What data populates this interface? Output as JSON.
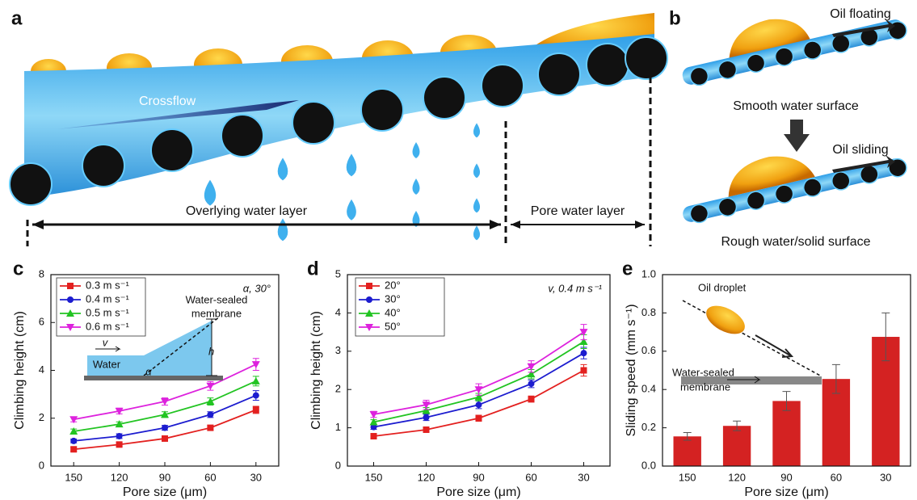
{
  "panels": {
    "a": {
      "label": "a",
      "crossflow": "Crossflow",
      "overlying": "Overlying water layer",
      "pore": "Pore water layer"
    },
    "b": {
      "label": "b",
      "top_arrow": "Oil floating",
      "top_caption": "Smooth water surface",
      "bottom_arrow": "Oil sliding",
      "bottom_caption": "Rough water/solid surface"
    }
  },
  "chart_data": [
    {
      "type": "line",
      "panel": "c",
      "x_label": "Pore size (μm)",
      "y_label": "Climbing height (cm)",
      "categories": [
        "150",
        "120",
        "90",
        "60",
        "30"
      ],
      "ylim": [
        0,
        8
      ],
      "yticks": [
        0,
        2,
        4,
        6,
        8
      ],
      "annotation": "α, 30°",
      "inset": [
        "Water-sealed",
        "membrane",
        "v",
        "Water",
        "h",
        "α"
      ],
      "series": [
        {
          "name": "0.3 m s⁻¹",
          "color": "#e3201f",
          "marker": "square",
          "values": [
            0.7,
            0.9,
            1.15,
            1.6,
            2.35
          ],
          "errors": [
            0.08,
            0.08,
            0.1,
            0.1,
            0.15
          ]
        },
        {
          "name": "0.4 m s⁻¹",
          "color": "#1c1ccf",
          "marker": "circle",
          "values": [
            1.05,
            1.25,
            1.6,
            2.15,
            2.95
          ],
          "errors": [
            0.08,
            0.1,
            0.1,
            0.12,
            0.2
          ]
        },
        {
          "name": "0.5 m s⁻¹",
          "color": "#22c422",
          "marker": "triangle",
          "values": [
            1.45,
            1.75,
            2.15,
            2.7,
            3.55
          ],
          "errors": [
            0.1,
            0.1,
            0.12,
            0.15,
            0.2
          ]
        },
        {
          "name": "0.6 m s⁻¹",
          "color": "#dd22dd",
          "marker": "down",
          "values": [
            1.95,
            2.3,
            2.7,
            3.35,
            4.25
          ],
          "errors": [
            0.1,
            0.12,
            0.15,
            0.18,
            0.25
          ]
        }
      ]
    },
    {
      "type": "line",
      "panel": "d",
      "x_label": "Pore size (μm)",
      "y_label": "Climbing height (cm)",
      "categories": [
        "150",
        "120",
        "90",
        "60",
        "30"
      ],
      "ylim": [
        0,
        5
      ],
      "yticks": [
        0,
        1,
        2,
        3,
        4,
        5
      ],
      "annotation": "v, 0.4 m s⁻¹",
      "series": [
        {
          "name": "20°",
          "color": "#e3201f",
          "marker": "square",
          "values": [
            0.78,
            0.95,
            1.25,
            1.75,
            2.5
          ],
          "errors": [
            0.05,
            0.06,
            0.08,
            0.08,
            0.15
          ]
        },
        {
          "name": "30°",
          "color": "#1c1ccf",
          "marker": "circle",
          "values": [
            1.02,
            1.27,
            1.6,
            2.15,
            2.95
          ],
          "errors": [
            0.06,
            0.08,
            0.1,
            0.1,
            0.15
          ]
        },
        {
          "name": "40°",
          "color": "#22c422",
          "marker": "triangle",
          "values": [
            1.15,
            1.45,
            1.8,
            2.4,
            3.25
          ],
          "errors": [
            0.06,
            0.08,
            0.1,
            0.12,
            0.18
          ]
        },
        {
          "name": "50°",
          "color": "#dd22dd",
          "marker": "down",
          "values": [
            1.35,
            1.6,
            2.0,
            2.6,
            3.5
          ],
          "errors": [
            0.08,
            0.12,
            0.15,
            0.15,
            0.2
          ]
        }
      ]
    },
    {
      "type": "bar",
      "panel": "e",
      "x_label": "Pore size (μm)",
      "y_label": "Sliding speed (mm s⁻¹)",
      "categories": [
        "150",
        "120",
        "90",
        "60",
        "30"
      ],
      "ylim": [
        0,
        1
      ],
      "yticks": [
        {
          "value": 0,
          "label": "0.0"
        },
        0.2,
        0.4,
        0.6,
        0.8,
        {
          "value": 1,
          "label": "1.0"
        }
      ],
      "inset": [
        "Oil droplet",
        "Water-sealed",
        "membrane"
      ],
      "color": "#d42222",
      "values": [
        0.155,
        0.21,
        0.34,
        0.455,
        0.675
      ],
      "errors": [
        0.02,
        0.025,
        0.05,
        0.075,
        0.125
      ]
    }
  ]
}
